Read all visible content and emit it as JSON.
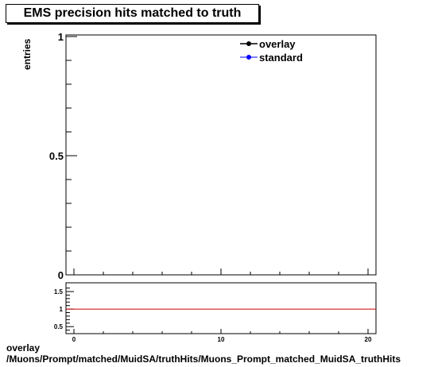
{
  "title": "EMS precision hits matched to truth",
  "footer": {
    "line1": "overlay",
    "line2": "/Muons/Prompt/matched/MuidSA/truthHits/Muons_Prompt_matched_MuidSA_truthHits"
  },
  "chart_data": [
    {
      "type": "line",
      "ylabel": "entries",
      "xlim": [
        0,
        20
      ],
      "ylim": [
        0,
        1
      ],
      "y_tick_labels": [
        "0",
        "0.5",
        "1"
      ],
      "legend": {
        "placement": "top-right",
        "entries": [
          {
            "name": "overlay",
            "color": "#000000"
          },
          {
            "name": "standard",
            "color": "#0000ff"
          }
        ]
      },
      "series": []
    },
    {
      "type": "line",
      "xlim": [
        0,
        20
      ],
      "ylim": [
        0.3,
        1.75
      ],
      "x_tick_labels": [
        "0",
        "10",
        "20"
      ],
      "y_tick_labels": [
        "0.5",
        "1",
        "1.5"
      ],
      "reference_line": {
        "y": 1,
        "color": "#cc0000"
      }
    }
  ]
}
